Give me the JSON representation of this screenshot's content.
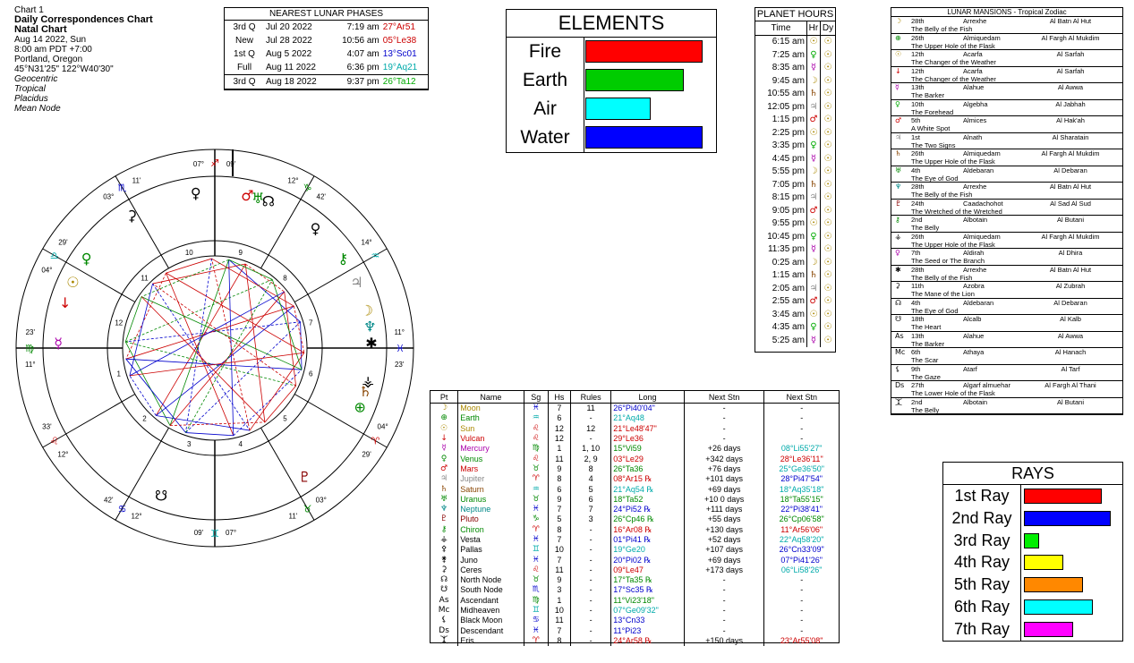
{
  "info": {
    "chart_num": "Chart 1",
    "title": "Daily Correspondences Chart",
    "subtitle": "Natal Chart",
    "date": "Aug 14 2022, Sun",
    "time": "8:00 am  PDT +7:00",
    "place": "Portland, Oregon",
    "coords": "45°N31'25\" 122°W40'30\"",
    "settings": [
      "Geocentric",
      "Tropical",
      "Placidus",
      "Mean Node"
    ]
  },
  "lunar": {
    "title": "NEAREST LUNAR PHASES",
    "rows": [
      {
        "phase": "3rd Q",
        "date": "Jul 20 2022",
        "time": "7:19 am",
        "pos": "27°Ar51",
        "color": "#cc0000"
      },
      {
        "phase": "New",
        "date": "Jul 28 2022",
        "time": "10:56 am",
        "pos": "05°Le38",
        "color": "#cc0000"
      },
      {
        "phase": "1st Q",
        "date": "Aug 5 2022",
        "time": "4:07 am",
        "pos": "13°Sc01",
        "color": "#0000cc"
      },
      {
        "phase": "Full",
        "date": "Aug 11 2022",
        "time": "6:36 pm",
        "pos": "19°Aq21",
        "color": "#00aaaa"
      },
      {
        "phase": "3rd Q",
        "date": "Aug 18 2022",
        "time": "9:37 pm",
        "pos": "26°Ta12",
        "color": "#00aa00"
      }
    ]
  },
  "elements": {
    "title": "ELEMENTS",
    "items": [
      {
        "label": "Fire",
        "value": 0.9,
        "color": "#ff0000"
      },
      {
        "label": "Earth",
        "value": 0.75,
        "color": "#00cc00"
      },
      {
        "label": "Air",
        "value": 0.5,
        "color": "#00ffff"
      },
      {
        "label": "Water",
        "value": 0.9,
        "color": "#0000ff"
      }
    ]
  },
  "hours": {
    "title": "PLANET HOURS",
    "headers": [
      "Time",
      "Hr",
      "Dy"
    ],
    "rows": [
      {
        "t": "6:15 am",
        "p": "☉",
        "c": "#aa8800"
      },
      {
        "t": "7:25 am",
        "p": "♀",
        "c": "#00aa00"
      },
      {
        "t": "8:35 am",
        "p": "☿",
        "c": "#aa00aa"
      },
      {
        "t": "9:45 am",
        "p": "☽",
        "c": "#aa8800"
      },
      {
        "t": "10:55 am",
        "p": "♄",
        "c": "#884400"
      },
      {
        "t": "12:05 pm",
        "p": "♃",
        "c": "#888888"
      },
      {
        "t": "1:15 pm",
        "p": "♂",
        "c": "#cc0000"
      },
      {
        "t": "2:25 pm",
        "p": "☉",
        "c": "#aa8800"
      },
      {
        "t": "3:35 pm",
        "p": "♀",
        "c": "#00aa00"
      },
      {
        "t": "4:45 pm",
        "p": "☿",
        "c": "#aa00aa"
      },
      {
        "t": "5:55 pm",
        "p": "☽",
        "c": "#aa8800"
      },
      {
        "t": "7:05 pm",
        "p": "♄",
        "c": "#884400"
      },
      {
        "t": "8:15 pm",
        "p": "♃",
        "c": "#888888"
      },
      {
        "t": "9:05 pm",
        "p": "♂",
        "c": "#cc0000"
      },
      {
        "t": "9:55 pm",
        "p": "☉",
        "c": "#aa8800"
      },
      {
        "t": "10:45 pm",
        "p": "♀",
        "c": "#00aa00"
      },
      {
        "t": "11:35 pm",
        "p": "☿",
        "c": "#aa00aa"
      },
      {
        "t": "0:25 am",
        "p": "☽",
        "c": "#aa8800"
      },
      {
        "t": "1:15 am",
        "p": "♄",
        "c": "#884400"
      },
      {
        "t": "2:05 am",
        "p": "♃",
        "c": "#888888"
      },
      {
        "t": "2:55 am",
        "p": "♂",
        "c": "#cc0000"
      },
      {
        "t": "3:45 am",
        "p": "☉",
        "c": "#aa8800"
      },
      {
        "t": "4:35 am",
        "p": "♀",
        "c": "#00aa00"
      },
      {
        "t": "5:25 am",
        "p": "☿",
        "c": "#aa00aa"
      }
    ],
    "day_symbol": "☉"
  },
  "mansions": {
    "title": "LUNAR MANSIONS - Tropical Zodiac",
    "rows": [
      {
        "sym": "☽",
        "c": "#aa8800",
        "deg": "28th",
        "star": "Arrexhe",
        "name": "Al Batn Al Hut",
        "meaning": "The Belly of the Fish"
      },
      {
        "sym": "⊕",
        "c": "#008800",
        "deg": "26th",
        "star": "Almiquedam",
        "name": "Al Fargh Al Mukdim",
        "meaning": "The Upper Hole of the Flask"
      },
      {
        "sym": "☉",
        "c": "#aa8800",
        "deg": "12th",
        "star": "Acarfa",
        "name": "Al Sarfah",
        "meaning": "The Changer of the Weather"
      },
      {
        "sym": "↓",
        "c": "#cc0000",
        "deg": "12th",
        "star": "Acarfa",
        "name": "Al Sarfah",
        "meaning": "The Changer of the Weather"
      },
      {
        "sym": "☿",
        "c": "#aa00aa",
        "deg": "13th",
        "star": "Alahue",
        "name": "Al Awwa",
        "meaning": "The Barker"
      },
      {
        "sym": "♀",
        "c": "#00aa00",
        "deg": "10th",
        "star": "Algebha",
        "name": "Al Jabhah",
        "meaning": "The Forehead"
      },
      {
        "sym": "♂",
        "c": "#cc0000",
        "deg": "5th",
        "star": "Almices",
        "name": "Al Hak'ah",
        "meaning": "A White Spot"
      },
      {
        "sym": "♃",
        "c": "#888888",
        "deg": "1st",
        "star": "Alnath",
        "name": "Al Sharatain",
        "meaning": "The Two Signs"
      },
      {
        "sym": "♄",
        "c": "#884400",
        "deg": "26th",
        "star": "Almiquedam",
        "name": "Al Fargh Al Mukdim",
        "meaning": "The Upper Hole of the Flask"
      },
      {
        "sym": "♅",
        "c": "#008800",
        "deg": "4th",
        "star": "Aldebaran",
        "name": "Al Debaran",
        "meaning": "The Eye of God"
      },
      {
        "sym": "♆",
        "c": "#008888",
        "deg": "28th",
        "star": "Arrexhe",
        "name": "Al Batn Al Hut",
        "meaning": "The Belly of the Fish"
      },
      {
        "sym": "♇",
        "c": "#880000",
        "deg": "24th",
        "star": "Caadachohot",
        "name": "Al Sad Al Sud",
        "meaning": "The Wretched of the Wretched"
      },
      {
        "sym": "⚷",
        "c": "#008800",
        "deg": "2nd",
        "star": "Albotain",
        "name": "Al Butani",
        "meaning": "The Belly"
      },
      {
        "sym": "⚶",
        "c": "#000000",
        "deg": "26th",
        "star": "Almiquedam",
        "name": "Al Fargh Al Mukdim",
        "meaning": "The Upper Hole of the Flask"
      },
      {
        "sym": "♀",
        "c": "#aa00aa",
        "deg": "7th",
        "star": "Aldirah",
        "name": "Al Dhira",
        "meaning": "The Seed or The Branch"
      },
      {
        "sym": "✱",
        "c": "#000000",
        "deg": "28th",
        "star": "Arrexhe",
        "name": "Al Batn Al Hut",
        "meaning": "The Belly of the Fish"
      },
      {
        "sym": "⚳",
        "c": "#000000",
        "deg": "11th",
        "star": "Azobra",
        "name": "Al Zubrah",
        "meaning": "The Mane of the Lion"
      },
      {
        "sym": "☊",
        "c": "#000000",
        "deg": "4th",
        "star": "Aldebaran",
        "name": "Al Debaran",
        "meaning": "The Eye of God"
      },
      {
        "sym": "☋",
        "c": "#000000",
        "deg": "18th",
        "star": "Alcalb",
        "name": "Al Kalb",
        "meaning": "The Heart"
      },
      {
        "sym": "As",
        "c": "#000000",
        "deg": "13th",
        "star": "Alahue",
        "name": "Al Awwa",
        "meaning": "The Barker"
      },
      {
        "sym": "Mc",
        "c": "#000000",
        "deg": "6th",
        "star": "Athaya",
        "name": "Al Hanach",
        "meaning": "The Scar"
      },
      {
        "sym": "⚸",
        "c": "#000000",
        "deg": "9th",
        "star": "Atarf",
        "name": "Al Tarf",
        "meaning": "The Gaze"
      },
      {
        "sym": "Ds",
        "c": "#000000",
        "deg": "27th",
        "star": "Algarf almuehar",
        "name": "Al Fargh Al Thani",
        "meaning": "The Lower Hole of the Flask"
      },
      {
        "sym": "⯰",
        "c": "#000000",
        "deg": "2nd",
        "star": "Albotain",
        "name": "Al Butani",
        "meaning": "The Belly"
      }
    ]
  },
  "planets": {
    "headers": [
      "Pt",
      "Name",
      "Sg",
      "Hs",
      "Rules",
      "Long",
      "Next Stn",
      "Next Stn"
    ],
    "rows": [
      {
        "sym": "☽",
        "name": "Moon",
        "c": "#aa8800",
        "sg": "♓",
        "sgc": "#0000cc",
        "hs": "7",
        "rules": "11",
        "long": "26°Pi40'04\"",
        "lc": "#0000cc",
        "ns1": "-",
        "ns2": "-",
        "n2c": "#000"
      },
      {
        "sym": "⊕",
        "name": "Earth",
        "c": "#008800",
        "sg": "♒",
        "sgc": "#00aaaa",
        "hs": "6",
        "rules": "-",
        "long": "21°Aq48",
        "lc": "#00aaaa",
        "ns1": "-",
        "ns2": "-",
        "n2c": "#000"
      },
      {
        "sym": "☉",
        "name": "Sun",
        "c": "#aa8800",
        "sg": "♌",
        "sgc": "#cc0000",
        "hs": "12",
        "rules": "12",
        "long": "21°Le48'47\"",
        "lc": "#cc0000",
        "ns1": "-",
        "ns2": "-",
        "n2c": "#000"
      },
      {
        "sym": "↓",
        "name": "Vulcan",
        "c": "#cc0000",
        "sg": "♌",
        "sgc": "#cc0000",
        "hs": "12",
        "rules": "-",
        "long": "29°Le36",
        "lc": "#cc0000",
        "ns1": "-",
        "ns2": "-",
        "n2c": "#000"
      },
      {
        "sym": "☿",
        "name": "Mercury",
        "c": "#aa00aa",
        "sg": "♍",
        "sgc": "#008800",
        "hs": "1",
        "rules": "1, 10",
        "long": "15°Vi59",
        "lc": "#008800",
        "ns1": "+26 days",
        "ns2": "08°Li55'27\"",
        "n2c": "#00aaaa"
      },
      {
        "sym": "♀",
        "name": "Venus",
        "c": "#008800",
        "sg": "♌",
        "sgc": "#cc0000",
        "hs": "11",
        "rules": "2, 9",
        "long": "03°Le29",
        "lc": "#cc0000",
        "ns1": "+342 days",
        "ns2": "28°Le36'11\"",
        "n2c": "#cc0000"
      },
      {
        "sym": "♂",
        "name": "Mars",
        "c": "#cc0000",
        "sg": "♉",
        "sgc": "#008800",
        "hs": "9",
        "rules": "8",
        "long": "26°Ta36",
        "lc": "#008800",
        "ns1": "+76 days",
        "ns2": "25°Ge36'50\"",
        "n2c": "#00aaaa"
      },
      {
        "sym": "♃",
        "name": "Jupiter",
        "c": "#888888",
        "sg": "♈",
        "sgc": "#cc0000",
        "hs": "8",
        "rules": "4",
        "long": "08°Ar15 ℞",
        "lc": "#cc0000",
        "ns1": "+101 days",
        "ns2": "28°Pi47'54\"",
        "n2c": "#0000cc"
      },
      {
        "sym": "♄",
        "name": "Saturn",
        "c": "#884400",
        "sg": "♒",
        "sgc": "#00aaaa",
        "hs": "6",
        "rules": "5",
        "long": "21°Aq54 ℞",
        "lc": "#00aaaa",
        "ns1": "+69 days",
        "ns2": "18°Aq35'18\"",
        "n2c": "#00aaaa"
      },
      {
        "sym": "♅",
        "name": "Uranus",
        "c": "#008800",
        "sg": "♉",
        "sgc": "#008800",
        "hs": "9",
        "rules": "6",
        "long": "18°Ta52",
        "lc": "#008800",
        "ns1": "+10 0 days",
        "ns2": "18°Ta55'15\"",
        "n2c": "#008800"
      },
      {
        "sym": "♆",
        "name": "Neptune",
        "c": "#008888",
        "sg": "♓",
        "sgc": "#0000cc",
        "hs": "7",
        "rules": "7",
        "long": "24°Pi52 ℞",
        "lc": "#0000cc",
        "ns1": "+111 days",
        "ns2": "22°Pi38'41\"",
        "n2c": "#0000cc"
      },
      {
        "sym": "♇",
        "name": "Pluto",
        "c": "#880000",
        "sg": "♑",
        "sgc": "#008800",
        "hs": "5",
        "rules": "3",
        "long": "26°Cp46 ℞",
        "lc": "#008800",
        "ns1": "+55 days",
        "ns2": "26°Cp06'58\"",
        "n2c": "#008800"
      },
      {
        "sym": "⚷",
        "name": "Chiron",
        "c": "#008800",
        "sg": "♈",
        "sgc": "#cc0000",
        "hs": "8",
        "rules": "-",
        "long": "16°Ar08 ℞",
        "lc": "#cc0000",
        "ns1": "+130 days",
        "ns2": "11°Ar56'06\"",
        "n2c": "#cc0000"
      },
      {
        "sym": "⚶",
        "name": "Vesta",
        "c": "#000000",
        "sg": "♓",
        "sgc": "#0000cc",
        "hs": "7",
        "rules": "-",
        "long": "01°Pi41 ℞",
        "lc": "#0000cc",
        "ns1": "+52 days",
        "ns2": "22°Aq58'20\"",
        "n2c": "#00aaaa"
      },
      {
        "sym": "⚴",
        "name": "Pallas",
        "c": "#000000",
        "sg": "♊",
        "sgc": "#00aaaa",
        "hs": "10",
        "rules": "-",
        "long": "19°Ge20",
        "lc": "#00aaaa",
        "ns1": "+107 days",
        "ns2": "26°Cn33'09\"",
        "n2c": "#0000cc"
      },
      {
        "sym": "⚵",
        "name": "Juno",
        "c": "#000000",
        "sg": "♓",
        "sgc": "#0000cc",
        "hs": "7",
        "rules": "-",
        "long": "20°Pi02 ℞",
        "lc": "#0000cc",
        "ns1": "+69 days",
        "ns2": "07°Pi41'26\"",
        "n2c": "#0000cc"
      },
      {
        "sym": "⚳",
        "name": "Ceres",
        "c": "#000000",
        "sg": "♌",
        "sgc": "#cc0000",
        "hs": "11",
        "rules": "-",
        "long": "09°Le47",
        "lc": "#cc0000",
        "ns1": "+173 days",
        "ns2": "06°Li58'26\"",
        "n2c": "#00aaaa"
      },
      {
        "sym": "☊",
        "name": "North Node",
        "c": "#000000",
        "sg": "♉",
        "sgc": "#008800",
        "hs": "9",
        "rules": "-",
        "long": "17°Ta35 ℞",
        "lc": "#008800",
        "ns1": "-",
        "ns2": "-",
        "n2c": "#000"
      },
      {
        "sym": "☋",
        "name": "South Node",
        "c": "#000000",
        "sg": "♏",
        "sgc": "#0000cc",
        "hs": "3",
        "rules": "-",
        "long": "17°Sc35 ℞",
        "lc": "#0000cc",
        "ns1": "-",
        "ns2": "-",
        "n2c": "#000"
      },
      {
        "sym": "As",
        "name": "Ascendant",
        "c": "#000000",
        "sg": "♍",
        "sgc": "#008800",
        "hs": "1",
        "rules": "-",
        "long": "11°Vi23'18\"",
        "lc": "#008800",
        "ns1": "-",
        "ns2": "-",
        "n2c": "#000"
      },
      {
        "sym": "Mc",
        "name": "Midheaven",
        "c": "#000000",
        "sg": "♊",
        "sgc": "#00aaaa",
        "hs": "10",
        "rules": "-",
        "long": "07°Ge09'32\"",
        "lc": "#00aaaa",
        "ns1": "-",
        "ns2": "-",
        "n2c": "#000"
      },
      {
        "sym": "⚸",
        "name": "Black Moon",
        "c": "#000000",
        "sg": "♋",
        "sgc": "#0000cc",
        "hs": "11",
        "rules": "-",
        "long": "13°Cn33",
        "lc": "#0000cc",
        "ns1": "-",
        "ns2": "-",
        "n2c": "#000"
      },
      {
        "sym": "Ds",
        "name": "Descendant",
        "c": "#000000",
        "sg": "♓",
        "sgc": "#0000cc",
        "hs": "7",
        "rules": "-",
        "long": "11°Pi23",
        "lc": "#0000cc",
        "ns1": "-",
        "ns2": "-",
        "n2c": "#000"
      },
      {
        "sym": "⯰",
        "name": "Eris",
        "c": "#000000",
        "sg": "♈",
        "sgc": "#cc0000",
        "hs": "8",
        "rules": "-",
        "long": "24°Ar58 ℞",
        "lc": "#cc0000",
        "ns1": "+150 days",
        "ns2": "23°Ar55'08\"",
        "n2c": "#cc0000"
      }
    ]
  },
  "rays": {
    "title": "RAYS",
    "items": [
      {
        "label": "1st Ray",
        "value": 0.79,
        "color": "#ff0000"
      },
      {
        "label": "2nd Ray",
        "value": 0.88,
        "color": "#0000ff"
      },
      {
        "label": "3rd Ray",
        "value": 0.15,
        "color": "#00ee00"
      },
      {
        "label": "4th Ray",
        "value": 0.4,
        "color": "#ffff00"
      },
      {
        "label": "5th Ray",
        "value": 0.6,
        "color": "#ff8800"
      },
      {
        "label": "6th Ray",
        "value": 0.7,
        "color": "#00ffff"
      },
      {
        "label": "7th Ray",
        "value": 0.5,
        "color": "#ff00ff"
      }
    ]
  },
  "wheel": {
    "cusps": [
      {
        "deg": "07°",
        "sign": "♊",
        "min": "09'",
        "sc": "#00aaaa"
      },
      {
        "deg": "03°",
        "sign": "♉",
        "min": "11'",
        "sc": "#008800"
      },
      {
        "deg": "04°",
        "sign": "♈",
        "min": "29'",
        "sc": "#cc0000"
      },
      {
        "deg": "11°",
        "sign": "♓",
        "min": "23'",
        "sc": "#0000cc"
      },
      {
        "deg": "14°",
        "sign": "♒",
        "min": "",
        "sc": "#00aaaa"
      },
      {
        "deg": "12°",
        "sign": "♑",
        "min": "42'",
        "sc": "#008800"
      },
      {
        "deg": "07°",
        "sign": "♐",
        "min": "09'",
        "sc": "#cc0000"
      },
      {
        "deg": "03°",
        "sign": "♏",
        "min": "11'",
        "sc": "#0000cc"
      },
      {
        "deg": "04°",
        "sign": "♎",
        "min": "29'",
        "sc": "#00aaaa"
      },
      {
        "deg": "11°",
        "sign": "♍",
        "min": "23'",
        "sc": "#008800"
      },
      {
        "deg": "12°",
        "sign": "♌",
        "min": "33'",
        "sc": "#cc0000"
      },
      {
        "deg": "12°",
        "sign": "♋",
        "min": "42'",
        "sc": "#0000cc"
      }
    ],
    "house_numbers": [
      "1",
      "2",
      "3",
      "4",
      "5",
      "6",
      "7",
      "8",
      "9",
      "10",
      "11",
      "12"
    ]
  }
}
